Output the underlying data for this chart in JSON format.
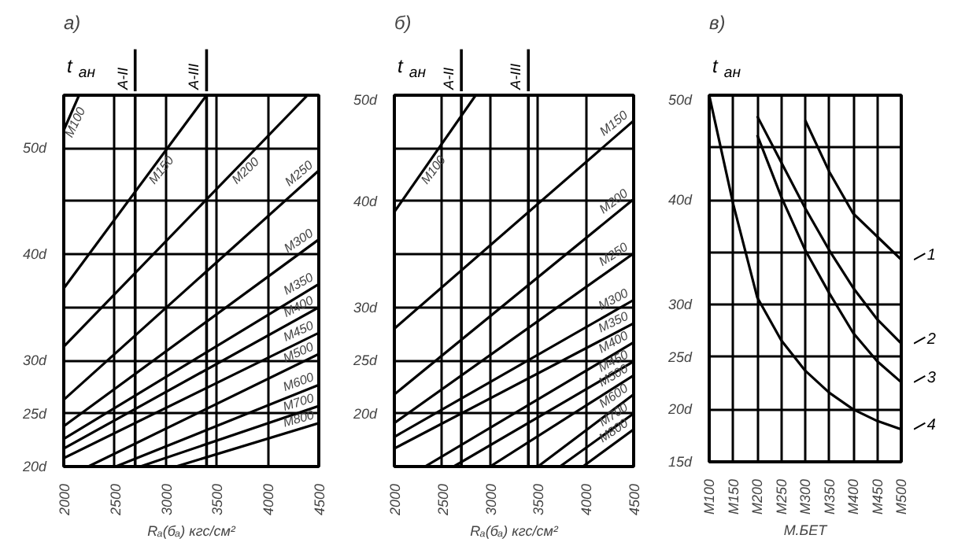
{
  "chart_data": [
    {
      "type": "line",
      "title": "а)",
      "xlabel": "Rₐ(бₐ) кгс/см²",
      "ylabel": "t$_{ан}$",
      "xlim": [
        2000,
        4500
      ],
      "ylim": [
        20,
        55
      ],
      "xticks": [
        2000,
        2500,
        3000,
        3500,
        4000,
        4500
      ],
      "yticks": [
        {
          "value": 20,
          "label": "20d"
        },
        {
          "value": 25,
          "label": "25d"
        },
        {
          "value": 30,
          "label": "30d"
        },
        {
          "value": 35,
          "label": null
        },
        {
          "value": 40,
          "label": "40d"
        },
        {
          "value": 45,
          "label": null
        },
        {
          "value": 50,
          "label": "50d"
        },
        {
          "value": 55,
          "label": null
        }
      ],
      "grid": true,
      "ref_lines": [
        {
          "axis": "x",
          "value": 2700,
          "label": "А-II"
        },
        {
          "axis": "x",
          "value": 3400,
          "label": "А-III"
        }
      ],
      "series": [
        {
          "name": "М100",
          "color": "#000000",
          "x": [
            2000,
            2150
          ],
          "values": [
            51.7,
            55
          ]
        },
        {
          "name": "М150",
          "color": "#000000",
          "x": [
            2000,
            3400
          ],
          "values": [
            36.8,
            55
          ]
        },
        {
          "name": "М200",
          "color": "#000000",
          "x": [
            2000,
            4390
          ],
          "values": [
            31.3,
            55
          ]
        },
        {
          "name": "М250",
          "color": "#000000",
          "x": [
            2000,
            4500
          ],
          "values": [
            26.3,
            47.9
          ]
        },
        {
          "name": "М300",
          "color": "#000000",
          "x": [
            2000,
            4500
          ],
          "values": [
            23.8,
            41.4
          ]
        },
        {
          "name": "М350",
          "color": "#000000",
          "x": [
            2000,
            4500
          ],
          "values": [
            22.6,
            37.2
          ]
        },
        {
          "name": "М400",
          "color": "#000000",
          "x": [
            2000,
            4500
          ],
          "values": [
            21.7,
            35
          ]
        },
        {
          "name": "М450",
          "color": "#000000",
          "x": [
            2000,
            4500
          ],
          "values": [
            20.8,
            32.6
          ]
        },
        {
          "name": "М500",
          "color": "#000000",
          "x": [
            2240,
            4500
          ],
          "values": [
            20,
            30.6
          ]
        },
        {
          "name": "М600",
          "color": "#000000",
          "x": [
            2510,
            4500
          ],
          "values": [
            20,
            27.7
          ]
        },
        {
          "name": "М700",
          "color": "#000000",
          "x": [
            2750,
            4500
          ],
          "values": [
            20,
            25.7
          ]
        },
        {
          "name": "М800",
          "color": "#000000",
          "x": [
            3100,
            4500
          ],
          "values": [
            20,
            24.1
          ]
        }
      ]
    },
    {
      "type": "line",
      "title": "б)",
      "xlabel": "Rₐ(бₐ) кгс/см²",
      "ylabel": "t$_{ан}$",
      "xlim": [
        2000,
        4500
      ],
      "ylim": [
        15,
        50
      ],
      "xticks": [
        2000,
        2500,
        3000,
        3500,
        4000,
        4500
      ],
      "yticks": [
        {
          "value": 15,
          "label": null
        },
        {
          "value": 20,
          "label": "20d"
        },
        {
          "value": 25,
          "label": "25d"
        },
        {
          "value": 30,
          "label": "30d"
        },
        {
          "value": 35,
          "label": null
        },
        {
          "value": 40,
          "label": "40d"
        },
        {
          "value": 45,
          "label": null
        },
        {
          "value": 50,
          "label": "50d"
        }
      ],
      "grid": true,
      "ref_lines": [
        {
          "axis": "x",
          "value": 2700,
          "label": "А-II"
        },
        {
          "axis": "x",
          "value": 3400,
          "label": "А-III"
        }
      ],
      "series": [
        {
          "name": "М100",
          "color": "#000000",
          "x": [
            2000,
            2850
          ],
          "values": [
            39,
            50
          ]
        },
        {
          "name": "М150",
          "color": "#000000",
          "x": [
            2000,
            4500
          ],
          "values": [
            28,
            47.6
          ]
        },
        {
          "name": "М200",
          "color": "#000000",
          "x": [
            2000,
            4500
          ],
          "values": [
            21.8,
            40.2
          ]
        },
        {
          "name": "М250",
          "color": "#000000",
          "x": [
            2000,
            4500
          ],
          "values": [
            19.1,
            35.1
          ]
        },
        {
          "name": "М300",
          "color": "#000000",
          "x": [
            2000,
            4500
          ],
          "values": [
            17.8,
            30.7
          ]
        },
        {
          "name": "М350",
          "color": "#000000",
          "x": [
            2000,
            4500
          ],
          "values": [
            16.7,
            28.5
          ]
        },
        {
          "name": "М400",
          "color": "#000000",
          "x": [
            2320,
            4500
          ],
          "values": [
            15,
            26.7
          ]
        },
        {
          "name": "М450",
          "color": "#000000",
          "x": [
            2620,
            4500
          ],
          "values": [
            15,
            24.9
          ]
        },
        {
          "name": "М500",
          "color": "#000000",
          "x": [
            3000,
            4500
          ],
          "values": [
            15,
            23.6
          ]
        },
        {
          "name": "М600",
          "color": "#000000",
          "x": [
            3500,
            4500
          ],
          "values": [
            15,
            21.8
          ]
        },
        {
          "name": "М700",
          "color": "#000000",
          "x": [
            3730,
            4500
          ],
          "values": [
            15,
            20
          ]
        },
        {
          "name": "М800",
          "color": "#000000",
          "x": [
            3970,
            4500
          ],
          "values": [
            15,
            18.5
          ]
        }
      ]
    },
    {
      "type": "line",
      "title": "в)",
      "xlabel": "М.БЕТ",
      "ylabel": "t$_{ан}$",
      "ylim": [
        15,
        50
      ],
      "legend": "right",
      "categories": [
        "М100",
        "М150",
        "М200",
        "М250",
        "М300",
        "М350",
        "М400",
        "М450",
        "М500"
      ],
      "yticks": [
        {
          "value": 15,
          "label": "15d"
        },
        {
          "value": 20,
          "label": "20d"
        },
        {
          "value": 25,
          "label": "25d"
        },
        {
          "value": 30,
          "label": "30d"
        },
        {
          "value": 35,
          "label": null
        },
        {
          "value": 40,
          "label": "40d"
        },
        {
          "value": 45,
          "label": null
        },
        {
          "value": 50,
          "label": "50d"
        }
      ],
      "grid": true,
      "series": [
        {
          "name": "1",
          "color": "#000000",
          "values": [
            null,
            null,
            null,
            null,
            47.6,
            42.7,
            38.7,
            36.5,
            34.3
          ]
        },
        {
          "name": "2",
          "color": "#000000",
          "values": [
            null,
            null,
            48,
            43.6,
            39.2,
            35.2,
            31.6,
            28.6,
            26.3
          ]
        },
        {
          "name": "3",
          "color": "#000000",
          "values": [
            null,
            null,
            46.2,
            40.3,
            35.2,
            31.1,
            27.3,
            24.6,
            22.6
          ]
        },
        {
          "name": "4",
          "color": "#000000",
          "values": [
            50,
            39.6,
            30.7,
            26.6,
            23.7,
            21.6,
            20,
            18.9,
            18.1
          ]
        }
      ]
    }
  ]
}
